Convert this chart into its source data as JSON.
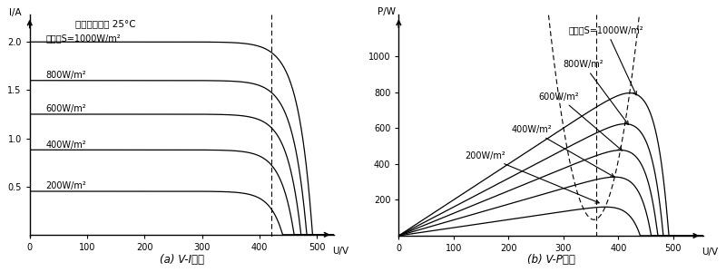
{
  "irradiance_levels": [
    200,
    400,
    600,
    800,
    1000
  ],
  "Isc_values": [
    0.45,
    0.88,
    1.25,
    1.6,
    2.0
  ],
  "Voc_values": [
    440,
    460,
    472,
    482,
    492
  ],
  "n_factor": 0.05,
  "panel1_title": "光伏阵列温度 25°C",
  "panel1_label1": "日照度S=1000W/m²",
  "panel1_labels": [
    "800W/m²",
    "600W/m²",
    "400W/m²",
    "200W/m²"
  ],
  "panel1_xlabel": "U/V",
  "panel1_ylabel": "I/A",
  "panel1_caption": "(a) V-I特性",
  "panel2_label1": "日照度S=1000W/m²",
  "panel2_labels": [
    "800W/m²",
    "600W/m²",
    "400W/m²",
    "200W/m²"
  ],
  "panel2_xlabel": "U/V",
  "panel2_ylabel": "P/W",
  "panel2_caption": "(b) V-P特性",
  "line_color": "#000000",
  "bg_color": "#ffffff",
  "xlim1": [
    0,
    530
  ],
  "ylim1": [
    -0.02,
    2.28
  ],
  "xlim2": [
    0,
    555
  ],
  "ylim2": [
    -5,
    1230
  ],
  "xticks1": [
    0,
    100,
    200,
    300,
    400,
    500
  ],
  "yticks1": [
    0.5,
    1.0,
    1.5,
    2.0
  ],
  "xticks2": [
    0,
    100,
    200,
    300,
    400,
    500
  ],
  "yticks2": [
    200,
    400,
    600,
    800,
    1000
  ],
  "vline1": 420,
  "vline2": 360
}
